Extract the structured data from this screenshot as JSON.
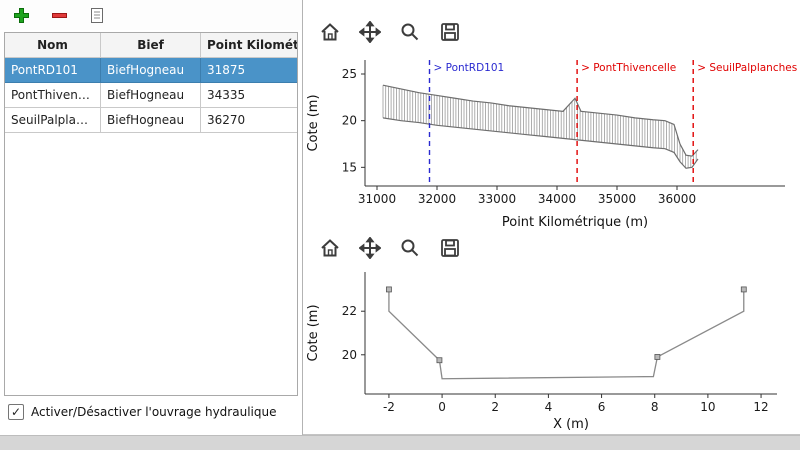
{
  "colors": {
    "selection": "#4a93c8",
    "add_green": "#1fa41f",
    "remove_red": "#e03a3a",
    "annotation_blue": "#2a2ad0",
    "annotation_red": "#e00000",
    "profile_line": "#6e6e6e",
    "hatch_gray": "#9a9a9a",
    "section_line": "#8a8a8a",
    "footer_gray": "#d6d6d6"
  },
  "toolbar": {
    "add_icon": "plus-icon",
    "remove_icon": "minus-icon",
    "report_icon": "document-icon"
  },
  "plot_toolbar": {
    "home_icon": "home-icon",
    "pan_icon": "move-icon",
    "zoom_icon": "magnifier-icon",
    "save_icon": "save-icon"
  },
  "table": {
    "headers": [
      "Nom",
      "Bief",
      "Point Kilométrique"
    ],
    "selected_index": 0,
    "rows": [
      {
        "nom": "PontRD101",
        "bief": "BiefHogneau",
        "pk": "31875"
      },
      {
        "nom": "PontThivencelle",
        "bief": "BiefHogneau",
        "pk": "34335"
      },
      {
        "nom": "SeuilPalplanches",
        "bief": "BiefHogneau",
        "pk": "36270"
      }
    ]
  },
  "checkbox": {
    "label": "Activer/Désactiver l'ouvrage hydraulique",
    "checked": true,
    "check_glyph": "✓"
  },
  "chart_data": [
    {
      "type": "line",
      "title": "",
      "xlabel": "Point Kilométrique (m)",
      "ylabel": "Cote (m)",
      "xlim": [
        30800,
        37800
      ],
      "ylim": [
        13.0,
        26.5
      ],
      "xticks": [
        31000,
        32000,
        33000,
        34000,
        35000,
        36000
      ],
      "yticks": [
        15,
        20,
        25
      ],
      "grid": false,
      "series": [
        {
          "name": "crest",
          "color": "#6e6e6e",
          "width": 1.2,
          "points": [
            [
              31100,
              23.8
            ],
            [
              31400,
              23.4
            ],
            [
              31700,
              23.0
            ],
            [
              32000,
              22.7
            ],
            [
              32300,
              22.4
            ],
            [
              32600,
              22.1
            ],
            [
              32900,
              21.9
            ],
            [
              33200,
              21.6
            ],
            [
              33500,
              21.4
            ],
            [
              33800,
              21.2
            ],
            [
              34100,
              21.0
            ],
            [
              34300,
              22.4
            ],
            [
              34400,
              21.0
            ],
            [
              34700,
              20.8
            ],
            [
              35000,
              20.6
            ],
            [
              35300,
              20.3
            ],
            [
              35600,
              20.1
            ],
            [
              35800,
              20.0
            ],
            [
              35950,
              19.6
            ],
            [
              36050,
              17.5
            ],
            [
              36150,
              16.3
            ],
            [
              36250,
              16.2
            ],
            [
              36350,
              16.9
            ]
          ]
        },
        {
          "name": "bed",
          "color": "#6e6e6e",
          "width": 1.2,
          "points": [
            [
              31100,
              20.3
            ],
            [
              31400,
              20.0
            ],
            [
              31700,
              19.8
            ],
            [
              32000,
              19.5
            ],
            [
              32300,
              19.3
            ],
            [
              32600,
              19.1
            ],
            [
              32900,
              18.9
            ],
            [
              33200,
              18.7
            ],
            [
              33500,
              18.5
            ],
            [
              33800,
              18.3
            ],
            [
              34100,
              18.1
            ],
            [
              34400,
              17.9
            ],
            [
              34700,
              17.7
            ],
            [
              35000,
              17.5
            ],
            [
              35300,
              17.3
            ],
            [
              35600,
              17.1
            ],
            [
              35800,
              17.0
            ],
            [
              35950,
              16.6
            ],
            [
              36050,
              15.6
            ],
            [
              36150,
              14.9
            ],
            [
              36250,
              15.0
            ],
            [
              36350,
              15.9
            ]
          ]
        }
      ],
      "hatch": {
        "top": "crest",
        "bottom": "bed",
        "from": 31100,
        "to": 36350,
        "step": 45,
        "color": "#9a9a9a"
      },
      "vlines": [
        {
          "x": 31875,
          "color": "#2a2ad0",
          "label": "> PontRD101"
        },
        {
          "x": 34335,
          "color": "#e00000",
          "label": "> PontThivencelle"
        },
        {
          "x": 36270,
          "color": "#e00000",
          "label": "> SeuilPalplanches"
        }
      ]
    },
    {
      "type": "line",
      "title": "",
      "xlabel": "X (m)",
      "ylabel": "Cote (m)",
      "xlim": [
        -2.9,
        12.6
      ],
      "ylim": [
        18.2,
        23.8
      ],
      "xticks": [
        -2,
        0,
        2,
        4,
        6,
        8,
        10,
        12
      ],
      "yticks": [
        20,
        22
      ],
      "grid": false,
      "series": [
        {
          "name": "section",
          "color": "#8a8a8a",
          "width": 1.3,
          "points": [
            [
              -2,
              23
            ],
            [
              -2,
              22
            ],
            [
              -0.1,
              19.75
            ],
            [
              0,
              18.9
            ],
            [
              7.95,
              19.0
            ],
            [
              8.1,
              19.9
            ],
            [
              11.35,
              22
            ],
            [
              11.35,
              23
            ]
          ]
        }
      ],
      "markers": [
        [
          -2,
          23
        ],
        [
          -0.1,
          19.75
        ],
        [
          8.1,
          19.9
        ],
        [
          11.35,
          23
        ]
      ],
      "vlines": []
    }
  ]
}
